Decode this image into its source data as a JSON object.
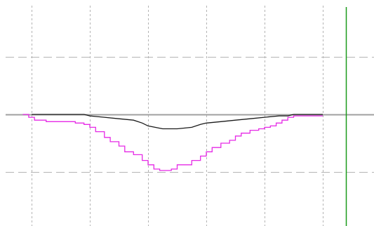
{
  "chart_data": {
    "type": "line",
    "title": "",
    "xlabel": "",
    "ylabel": "",
    "grid": true,
    "legend": "none",
    "xlim": [
      0,
      100
    ],
    "ylim": [
      -2,
      1.5
    ],
    "series": [
      {
        "color": "#1a1a1a",
        "step": false,
        "points": [
          [
            0,
            0
          ],
          [
            5,
            0
          ],
          [
            10,
            0
          ],
          [
            15,
            0
          ],
          [
            18,
            0
          ],
          [
            20,
            -0.05
          ],
          [
            25,
            -0.1
          ],
          [
            30,
            -0.15
          ],
          [
            35,
            -0.2
          ],
          [
            38,
            -0.3
          ],
          [
            40,
            -0.4
          ],
          [
            45,
            -0.5
          ],
          [
            50,
            -0.5
          ],
          [
            55,
            -0.45
          ],
          [
            58,
            -0.35
          ],
          [
            60,
            -0.3
          ],
          [
            65,
            -0.25
          ],
          [
            70,
            -0.2
          ],
          [
            75,
            -0.15
          ],
          [
            80,
            -0.1
          ],
          [
            85,
            -0.05
          ],
          [
            88,
            -0.05
          ],
          [
            90,
            0
          ],
          [
            95,
            0
          ],
          [
            100,
            0
          ]
        ]
      },
      {
        "color": "#e62ae6",
        "step": true,
        "points": [
          [
            -3,
            0
          ],
          [
            -1,
            -0.1
          ],
          [
            1,
            -0.2
          ],
          [
            5,
            -0.25
          ],
          [
            10,
            -0.25
          ],
          [
            15,
            -0.3
          ],
          [
            18,
            -0.35
          ],
          [
            20,
            -0.45
          ],
          [
            22,
            -0.6
          ],
          [
            25,
            -0.8
          ],
          [
            27,
            -0.95
          ],
          [
            30,
            -1.1
          ],
          [
            32,
            -1.3
          ],
          [
            35,
            -1.4
          ],
          [
            38,
            -1.6
          ],
          [
            40,
            -1.75
          ],
          [
            42,
            -1.9
          ],
          [
            44,
            -1.95
          ],
          [
            46,
            -1.95
          ],
          [
            48,
            -1.9
          ],
          [
            50,
            -1.75
          ],
          [
            52,
            -1.75
          ],
          [
            55,
            -1.6
          ],
          [
            58,
            -1.45
          ],
          [
            60,
            -1.3
          ],
          [
            62,
            -1.15
          ],
          [
            65,
            -1.0
          ],
          [
            68,
            -0.9
          ],
          [
            70,
            -0.75
          ],
          [
            72,
            -0.65
          ],
          [
            75,
            -0.55
          ],
          [
            78,
            -0.5
          ],
          [
            80,
            -0.45
          ],
          [
            82,
            -0.4
          ],
          [
            84,
            -0.3
          ],
          [
            86,
            -0.2
          ],
          [
            88,
            -0.1
          ],
          [
            90,
            -0.05
          ],
          [
            92,
            -0.05
          ],
          [
            95,
            -0.05
          ],
          [
            98,
            -0.05
          ],
          [
            100,
            -0.05
          ]
        ]
      }
    ],
    "cursor": {
      "x": 108,
      "color": "#1a9a1a"
    },
    "zero_line": {
      "y": 0,
      "color": "#a0a0a0"
    },
    "grid_style": {
      "major_color": "#b4b4b4"
    }
  }
}
